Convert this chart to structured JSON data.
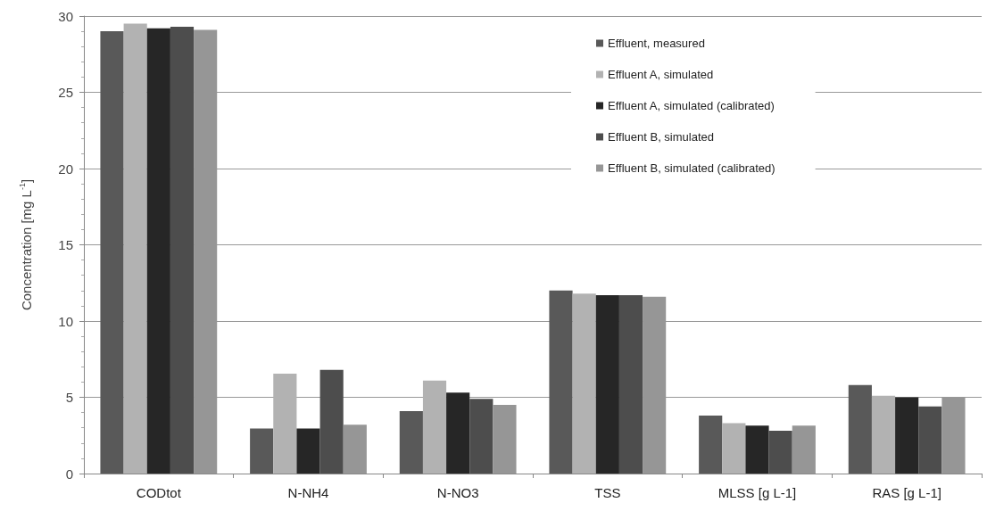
{
  "chart_data": {
    "type": "bar",
    "ylabel": "Concentration [mg L$^{-1}$]",
    "categories": [
      "CODtot",
      "N-NH4",
      "N-NO3",
      "TSS",
      "MLSS [g L-1]",
      "RAS [g L-1]"
    ],
    "series": [
      {
        "name": "Effluent, measured",
        "color": "#595959",
        "values": [
          29.0,
          2.95,
          4.1,
          12.0,
          3.8,
          5.8
        ]
      },
      {
        "name": "Effluent A, simulated",
        "color": "#b2b2b2",
        "values": [
          29.5,
          6.55,
          6.1,
          11.8,
          3.3,
          5.1
        ]
      },
      {
        "name": "Effluent A, simulated (calibrated)",
        "color": "#262626",
        "values": [
          29.2,
          2.95,
          5.3,
          11.7,
          3.15,
          5.0
        ]
      },
      {
        "name": "Effluent B, simulated",
        "color": "#4d4d4d",
        "values": [
          29.3,
          6.8,
          4.9,
          11.7,
          2.8,
          4.4
        ]
      },
      {
        "name": "Effluent B, simulated (calibrated)",
        "color": "#969696",
        "values": [
          29.1,
          3.2,
          4.5,
          11.6,
          3.15,
          5.0
        ]
      }
    ],
    "ylim": [
      0,
      30
    ],
    "yticks": [
      0,
      5,
      10,
      15,
      20,
      25,
      30
    ],
    "grid": "y",
    "legend": "top right"
  }
}
